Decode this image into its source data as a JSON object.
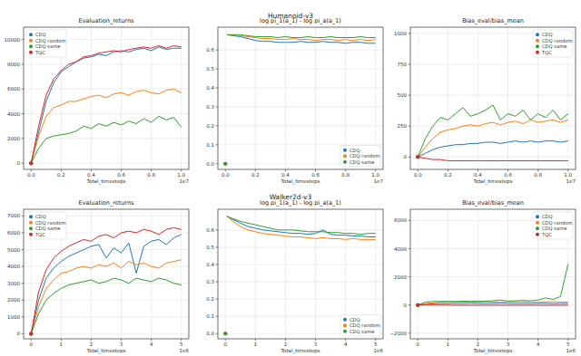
{
  "figure_titles": [
    "Humanoid-v3",
    "Walker2d-v3"
  ],
  "chart_data": [
    {
      "type": "line",
      "title": "Evaluation_returns",
      "xlabel": "Total_timesteps",
      "x_offset_label": "1e7",
      "x": [
        0,
        0.05,
        0.1,
        0.15,
        0.2,
        0.25,
        0.3,
        0.35,
        0.4,
        0.45,
        0.5,
        0.55,
        0.6,
        0.65,
        0.7,
        0.75,
        0.8,
        0.85,
        0.9,
        0.95,
        1.0
      ],
      "xlim": [
        -0.05,
        1.05
      ],
      "xticks": [
        {
          "value": 0,
          "label": "0.0"
        },
        0.2,
        0.4,
        0.6,
        0.8,
        {
          "value": 1,
          "label": "1.0"
        }
      ],
      "ylim": [
        -500,
        11000
      ],
      "yticks": [
        0,
        2000,
        4000,
        6000,
        8000,
        10000
      ],
      "grid": true,
      "legend": "upper left",
      "marker": "o",
      "series": [
        {
          "name": "CDQ",
          "color": "#1f77b4",
          "values": [
            0,
            2500,
            5000,
            6500,
            7400,
            7800,
            8200,
            8500,
            8600,
            8800,
            8700,
            9000,
            9100,
            9000,
            9200,
            9300,
            9100,
            9400,
            9200,
            9300,
            9300
          ]
        },
        {
          "name": "CDQ random",
          "color": "#ff7f0e",
          "values": [
            0,
            2200,
            3800,
            4500,
            4700,
            5000,
            5000,
            5200,
            5400,
            5500,
            5300,
            5600,
            5700,
            5500,
            5800,
            5900,
            5700,
            5600,
            5900,
            6000,
            5700
          ]
        },
        {
          "name": "CDQ same",
          "color": "#2ca02c",
          "values": [
            0,
            1200,
            2000,
            2200,
            2300,
            2400,
            2600,
            3000,
            2800,
            3200,
            3000,
            3300,
            3100,
            3400,
            3200,
            3600,
            3300,
            3800,
            3500,
            3700,
            2900
          ]
        },
        {
          "name": "TQC",
          "color": "#d62728",
          "values": [
            0,
            3000,
            5500,
            6800,
            7500,
            8000,
            8200,
            8600,
            8700,
            8900,
            9000,
            9100,
            9000,
            9200,
            9300,
            9400,
            9300,
            9500,
            9300,
            9500,
            9400
          ]
        }
      ]
    },
    {
      "type": "line",
      "title": "log pi_1(a_1) - log pi_a(a_1)",
      "xlabel": "Total_timesteps",
      "x_offset_label": "1e7",
      "x": [
        0,
        0.005,
        0.01,
        0.05,
        0.1,
        0.15,
        0.2,
        0.25,
        0.3,
        0.35,
        0.4,
        0.45,
        0.5,
        0.55,
        0.6,
        0.65,
        0.7,
        0.75,
        0.8,
        0.85,
        0.9,
        0.95,
        1.0
      ],
      "xlim": [
        -0.05,
        1.05
      ],
      "xticks": [
        {
          "value": 0,
          "label": "0.0"
        },
        0.2,
        0.4,
        0.6,
        0.8,
        {
          "value": 1,
          "label": "1.0"
        }
      ],
      "ylim": [
        -0.03,
        0.72
      ],
      "yticks": [
        {
          "value": 0,
          "label": "0.0"
        },
        0.1,
        0.2,
        0.3,
        0.4,
        0.5,
        0.6
      ],
      "grid": true,
      "legend": "lower right",
      "marker": "o",
      "series": [
        {
          "name": "CDQ",
          "color": "#1f77b4",
          "values": [
            0,
            null,
            0.68,
            0.675,
            0.67,
            0.66,
            0.65,
            0.645,
            0.645,
            0.64,
            0.64,
            0.64,
            0.645,
            0.64,
            0.64,
            0.645,
            0.64,
            0.64,
            0.635,
            0.64,
            0.64,
            0.635,
            0.635
          ]
        },
        {
          "name": "CDQ random",
          "color": "#ff7f0e",
          "values": [
            0,
            null,
            0.68,
            0.68,
            0.675,
            0.67,
            0.665,
            0.66,
            0.66,
            0.655,
            0.655,
            0.66,
            0.655,
            0.655,
            0.65,
            0.655,
            0.655,
            0.65,
            0.655,
            0.65,
            0.655,
            0.65,
            0.655
          ]
        },
        {
          "name": "CDQ same",
          "color": "#2ca02c",
          "values": [
            0,
            null,
            0.68,
            0.68,
            0.68,
            0.675,
            0.67,
            0.67,
            0.67,
            0.665,
            0.67,
            0.665,
            0.665,
            0.67,
            0.665,
            0.665,
            0.67,
            0.665,
            0.665,
            0.665,
            0.67,
            0.665,
            0.665
          ]
        }
      ]
    },
    {
      "type": "line",
      "title": "Bias_eval/bias_mean",
      "xlabel": "Total_timesteps",
      "x_offset_label": "1e7",
      "x": [
        0,
        0.05,
        0.1,
        0.15,
        0.2,
        0.25,
        0.3,
        0.35,
        0.4,
        0.45,
        0.5,
        0.55,
        0.6,
        0.65,
        0.7,
        0.75,
        0.8,
        0.85,
        0.9,
        0.95,
        1.0
      ],
      "xlim": [
        -0.05,
        1.05
      ],
      "xticks": [
        {
          "value": 0,
          "label": "0.0"
        },
        0.2,
        0.4,
        0.6,
        0.8,
        {
          "value": 1,
          "label": "1.0"
        }
      ],
      "ylim": [
        -100,
        1050
      ],
      "yticks": [
        0,
        250,
        500,
        750,
        1000
      ],
      "grid": true,
      "legend": "upper right",
      "marker": "o",
      "series": [
        {
          "name": "CDQ",
          "color": "#1f77b4",
          "values": [
            0,
            30,
            60,
            80,
            90,
            100,
            100,
            110,
            110,
            120,
            120,
            110,
            120,
            130,
            120,
            130,
            120,
            130,
            130,
            120,
            130
          ]
        },
        {
          "name": "CDQ random",
          "color": "#ff7f0e",
          "values": [
            0,
            80,
            150,
            200,
            220,
            230,
            250,
            260,
            250,
            270,
            280,
            260,
            280,
            290,
            270,
            300,
            280,
            290,
            300,
            280,
            300
          ]
        },
        {
          "name": "CDQ same",
          "color": "#2ca02c",
          "values": [
            0,
            150,
            250,
            320,
            300,
            350,
            400,
            330,
            350,
            380,
            420,
            300,
            350,
            330,
            380,
            300,
            350,
            320,
            380,
            300,
            350
          ]
        },
        {
          "name": "TQC",
          "color": "#d62728",
          "values": [
            0,
            -10,
            -20,
            -20,
            -30,
            -30,
            -30,
            -30,
            -30,
            -30,
            -30,
            -30,
            -30,
            -30,
            -30,
            -30,
            -30,
            -30,
            -30,
            -30,
            -30
          ]
        }
      ]
    },
    {
      "type": "line",
      "title": "Evaluation_returns",
      "xlabel": "Total_timesteps",
      "x_offset_label": "1e6",
      "x": [
        0,
        0.25,
        0.5,
        0.75,
        1,
        1.25,
        1.5,
        1.75,
        2,
        2.25,
        2.5,
        2.75,
        3,
        3.25,
        3.5,
        3.75,
        4,
        4.25,
        4.5,
        4.75,
        5
      ],
      "xlim": [
        -0.25,
        5.25
      ],
      "xticks": [
        0,
        1,
        2,
        3,
        4,
        5
      ],
      "ylim": [
        -300,
        7400
      ],
      "yticks": [
        0,
        1000,
        2000,
        3000,
        4000,
        5000,
        6000,
        7000
      ],
      "grid": true,
      "legend": "upper left",
      "marker": "o",
      "series": [
        {
          "name": "CDQ",
          "color": "#1f77b4",
          "values": [
            0,
            2000,
            3300,
            3900,
            4300,
            4600,
            4800,
            5000,
            5200,
            5300,
            4500,
            5100,
            4800,
            5400,
            3600,
            5200,
            5500,
            5600,
            5300,
            5700,
            5900
          ]
        },
        {
          "name": "CDQ random",
          "color": "#ff7f0e",
          "values": [
            0,
            1600,
            2700,
            3200,
            3600,
            3700,
            3900,
            4000,
            3900,
            4100,
            4000,
            4200,
            3900,
            4300,
            4100,
            4200,
            4000,
            3900,
            4200,
            4300,
            4400
          ]
        },
        {
          "name": "CDQ same",
          "color": "#2ca02c",
          "values": [
            0,
            1200,
            2000,
            2400,
            2700,
            2900,
            3000,
            3100,
            3200,
            3000,
            3100,
            3300,
            3200,
            3000,
            3300,
            3200,
            3100,
            3300,
            3200,
            3000,
            2900
          ]
        },
        {
          "name": "TQC",
          "color": "#d62728",
          "values": [
            0,
            2500,
            3800,
            4500,
            4900,
            5200,
            5400,
            5600,
            5500,
            5800,
            5900,
            5700,
            6000,
            6100,
            6000,
            6200,
            6100,
            5900,
            6200,
            6300,
            6200
          ]
        }
      ]
    },
    {
      "type": "line",
      "title": "log pi_1(a_1) - log pi_a(a_1)",
      "xlabel": "Total_timesteps",
      "x_offset_label": "1e6",
      "x": [
        0,
        0.025,
        0.05,
        0.25,
        0.5,
        0.75,
        1,
        1.25,
        1.5,
        1.75,
        2,
        2.25,
        2.5,
        2.75,
        3,
        3.25,
        3.5,
        3.75,
        4,
        4.25,
        4.5,
        4.75,
        5
      ],
      "xlim": [
        -0.25,
        5.25
      ],
      "xticks": [
        0,
        1,
        2,
        3,
        4,
        5
      ],
      "ylim": [
        -0.03,
        0.72
      ],
      "yticks": [
        {
          "value": 0,
          "label": "0.0"
        },
        0.1,
        0.2,
        0.3,
        0.4,
        0.5,
        0.6
      ],
      "grid": true,
      "legend": "lower right",
      "marker": "o",
      "series": [
        {
          "name": "CDQ",
          "color": "#1f77b4",
          "values": [
            0,
            null,
            0.68,
            0.66,
            0.64,
            0.62,
            0.61,
            0.6,
            0.595,
            0.59,
            0.585,
            0.58,
            0.58,
            0.575,
            0.58,
            0.6,
            0.575,
            0.57,
            0.57,
            0.565,
            0.565,
            0.56,
            0.56
          ]
        },
        {
          "name": "CDQ random",
          "color": "#ff7f0e",
          "values": [
            0,
            null,
            0.68,
            0.65,
            0.62,
            0.6,
            0.59,
            0.58,
            0.575,
            0.57,
            0.565,
            0.56,
            0.56,
            0.555,
            0.55,
            0.555,
            0.55,
            0.55,
            0.545,
            0.55,
            0.545,
            0.545,
            0.545
          ]
        },
        {
          "name": "CDQ same",
          "color": "#2ca02c",
          "values": [
            0,
            null,
            0.68,
            0.665,
            0.65,
            0.64,
            0.63,
            0.62,
            0.61,
            0.6,
            0.6,
            0.6,
            0.595,
            0.59,
            0.59,
            0.59,
            0.585,
            0.585,
            0.58,
            0.58,
            0.575,
            0.58,
            0.58
          ]
        }
      ]
    },
    {
      "type": "line",
      "title": "Bias_eval/bias_mean",
      "xlabel": "Total_timesteps",
      "x_offset_label": "1e6",
      "x": [
        0,
        0.25,
        0.5,
        0.75,
        1,
        1.25,
        1.5,
        1.75,
        2,
        2.25,
        2.5,
        2.75,
        3,
        3.25,
        3.5,
        3.75,
        4,
        4.25,
        4.5,
        4.75,
        5
      ],
      "xlim": [
        -0.25,
        5.25
      ],
      "xticks": [
        0,
        1,
        2,
        3,
        4,
        5
      ],
      "ylim": [
        -2400,
        6800
      ],
      "yticks": [
        {
          "value": -2000,
          "label": "−2000"
        },
        0,
        2000,
        4000,
        6000
      ],
      "grid": true,
      "legend": "upper right",
      "marker": "o",
      "series": [
        {
          "name": "CDQ",
          "color": "#1f77b4",
          "values": [
            0,
            50,
            80,
            100,
            100,
            110,
            100,
            120,
            110,
            100,
            110,
            120,
            110,
            100,
            110,
            100,
            110,
            120,
            100,
            110,
            100
          ]
        },
        {
          "name": "CDQ random",
          "color": "#ff7f0e",
          "values": [
            0,
            100,
            150,
            200,
            180,
            200,
            210,
            190,
            200,
            220,
            210,
            200,
            220,
            210,
            230,
            200,
            210,
            220,
            230,
            210,
            200
          ]
        },
        {
          "name": "CDQ same",
          "color": "#2ca02c",
          "values": [
            0,
            200,
            250,
            250,
            260,
            250,
            270,
            260,
            280,
            270,
            300,
            350,
            280,
            300,
            320,
            300,
            350,
            500,
            400,
            600,
            2900
          ]
        },
        {
          "name": "TQC",
          "color": "#d62728",
          "values": [
            0,
            0,
            -10,
            -10,
            -10,
            -20,
            -20,
            -20,
            -20,
            -20,
            -20,
            -20,
            -20,
            -20,
            -20,
            -20,
            -20,
            -20,
            -20,
            -20,
            -20
          ]
        }
      ]
    }
  ]
}
